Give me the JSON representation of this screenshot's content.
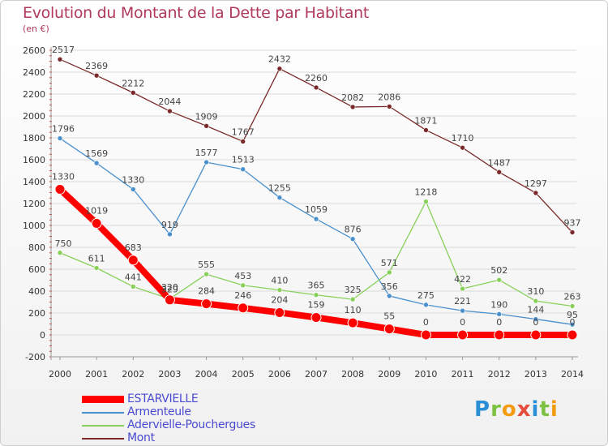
{
  "header": {
    "title": "Evolution du Montant de la Dette par Habitant",
    "subtitle": "(en €)"
  },
  "logo": {
    "text": [
      "P",
      "r",
      "o",
      "x",
      "i",
      "t",
      "i"
    ],
    "colors": [
      "#2a8fd6",
      "#7cc242",
      "#f39c12",
      "#e74c3c",
      "#2a8fd6",
      "#7cc242",
      "#f39c12"
    ]
  },
  "chart_data": {
    "type": "line",
    "title": "Evolution du Montant de la Dette par Habitant",
    "ylabel": "(en €)",
    "x": [
      "2000",
      "2001",
      "2002",
      "2003",
      "2004",
      "2005",
      "2006",
      "2007",
      "2008",
      "2009",
      "2010",
      "2011",
      "2012",
      "2013",
      "2014"
    ],
    "ylim": [
      -200,
      2600
    ],
    "yticks": [
      -200,
      0,
      200,
      400,
      600,
      800,
      1000,
      1200,
      1400,
      1600,
      1800,
      2000,
      2200,
      2400,
      2600
    ],
    "grid": "horizontal",
    "legend_position": "bottom-left",
    "series": [
      {
        "name": "Mont",
        "color": "#7a2a2a",
        "width": 1.3,
        "marker": 3,
        "values": [
          2517,
          2369,
          2212,
          2044,
          1909,
          1767,
          2432,
          2260,
          2082,
          2086,
          1871,
          1710,
          1487,
          1297,
          937
        ]
      },
      {
        "name": "Armenteule",
        "color": "#4a90cc",
        "width": 1.3,
        "marker": 3,
        "values": [
          1796,
          1569,
          1330,
          919,
          1577,
          1513,
          1255,
          1059,
          876,
          356,
          275,
          221,
          190,
          144,
          95
        ]
      },
      {
        "name": "Adervielle-Pouchergues",
        "color": "#88d05a",
        "width": 1.3,
        "marker": 3,
        "values": [
          750,
          611,
          441,
          329,
          555,
          453,
          410,
          365,
          325,
          571,
          1218,
          422,
          502,
          310,
          263
        ]
      },
      {
        "name": "ESTARVIELLE",
        "color": "#ff0000",
        "width": 8,
        "marker": 6,
        "values": [
          1330,
          1019,
          683,
          320,
          284,
          246,
          204,
          159,
          110,
          55,
          0,
          0,
          0,
          0,
          0
        ]
      }
    ],
    "data_labels": [
      [
        "2517",
        "2369",
        "2212",
        "2044",
        "1909",
        "1767",
        "2432",
        "2260",
        "2082",
        "2086",
        "1871",
        "1710",
        "1487",
        "1297",
        "937"
      ],
      [
        "1796",
        "1569",
        "1330",
        "919",
        "1577",
        "1513",
        "1255",
        "1059",
        "876",
        "356",
        "275",
        "221",
        "190",
        "144",
        "95"
      ],
      [
        "750",
        "611",
        "441",
        "329",
        "555",
        "453",
        "410",
        "365",
        "325",
        "571",
        "1218",
        "422",
        "502",
        "310",
        "263"
      ],
      [
        "1330",
        "1019",
        "683",
        "320",
        "284",
        "246",
        "204",
        "159",
        "110",
        "55",
        "0",
        "0",
        "0",
        "0",
        "0"
      ]
    ]
  },
  "legend": {
    "items": [
      {
        "label": "ESTARVIELLE",
        "color": "#ff0000",
        "thickness": 9
      },
      {
        "label": "Armenteule",
        "color": "#4a90cc",
        "thickness": 2
      },
      {
        "label": "Adervielle-Pouchergues",
        "color": "#88d05a",
        "thickness": 2
      },
      {
        "label": "Mont",
        "color": "#7a2a2a",
        "thickness": 2
      }
    ]
  }
}
